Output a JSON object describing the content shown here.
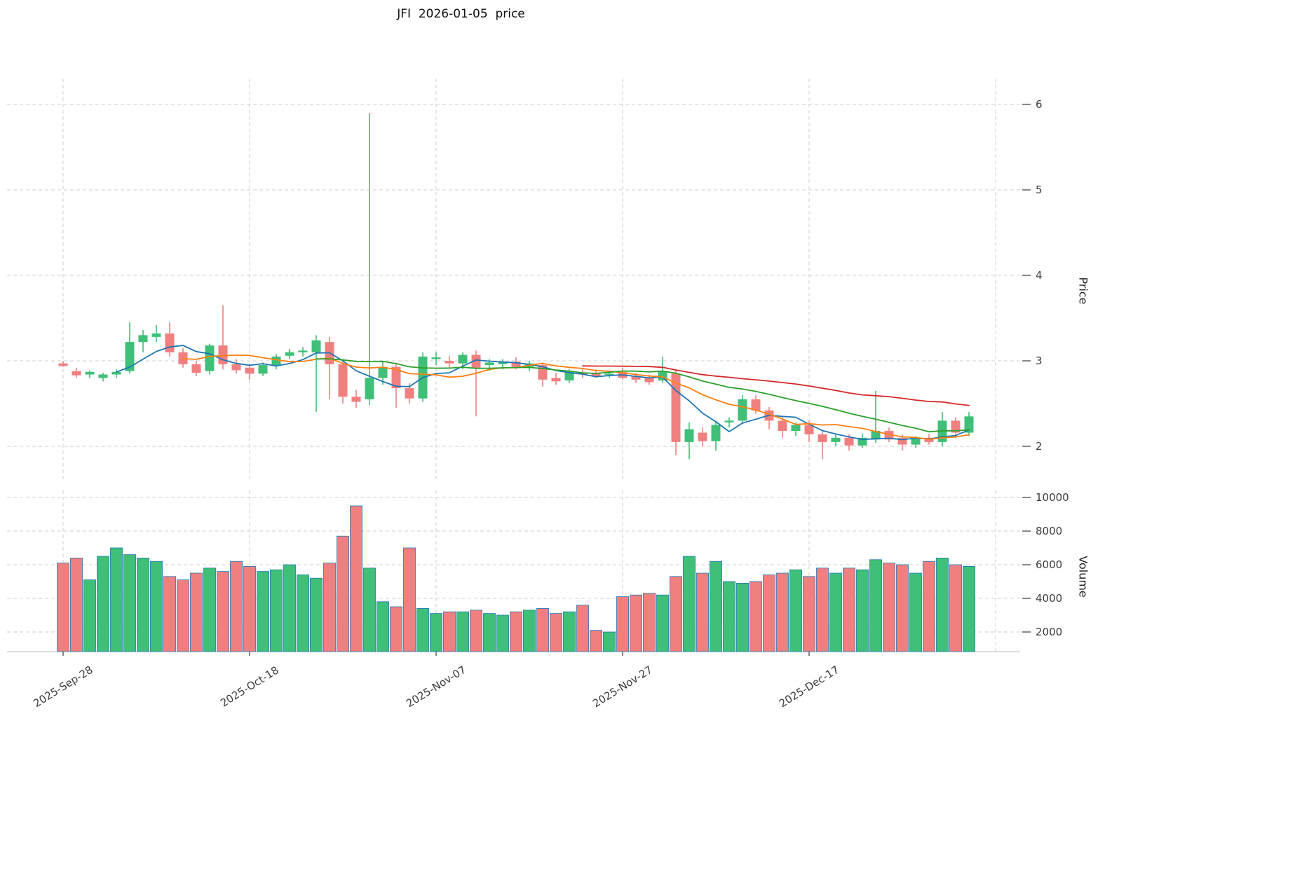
{
  "chart_data": {
    "type": "candlestick",
    "title": "JFI  2026-01-05  price",
    "symbol": "JFI",
    "as_of_date": "2026-01-05",
    "panels": [
      "price",
      "volume"
    ],
    "grid": true,
    "legend_position": "none",
    "price_axis": {
      "label": "Price",
      "ticks": [
        2,
        3,
        4,
        5,
        6
      ],
      "ylim": [
        1.57,
        6.3
      ],
      "side": "right"
    },
    "volume_axis": {
      "label": "Volume",
      "ticks": [
        2000,
        4000,
        6000,
        8000,
        10000
      ],
      "ylim": [
        800,
        10500
      ],
      "side": "right"
    },
    "x_axis": {
      "tick_indices": [
        0,
        14,
        28,
        42,
        56
      ],
      "tick_labels": [
        "2025-Sep-28",
        "2025-Oct-18",
        "2025-Nov-07",
        "2025-Nov-27",
        "2025-Dec-17"
      ],
      "extra_gridline_index": 70
    },
    "moving_averages": [
      {
        "name": "MA5",
        "window": 5,
        "color": "#1f77b4"
      },
      {
        "name": "MA10",
        "window": 10,
        "color": "#ff7f0e"
      },
      {
        "name": "MA20",
        "window": 20,
        "color": "#2ca02c"
      },
      {
        "name": "MA40",
        "window": 40,
        "color": "#d62728"
      }
    ],
    "colors": {
      "up": "#3fbf77",
      "down": "#f08080",
      "volume_edge": "#1f77b4",
      "grid": "#cfcfcf",
      "text": "#3c3c3c",
      "spine": "#bbbbbb"
    },
    "ohlc_columns": [
      "open",
      "high",
      "low",
      "close"
    ],
    "ohlc": [
      [
        2.97,
        3.0,
        2.93,
        2.94
      ],
      [
        2.88,
        2.92,
        2.8,
        2.83
      ],
      [
        2.84,
        2.89,
        2.8,
        2.87
      ],
      [
        2.8,
        2.86,
        2.76,
        2.84
      ],
      [
        2.84,
        2.9,
        2.8,
        2.87
      ],
      [
        2.88,
        3.45,
        2.85,
        3.22
      ],
      [
        3.22,
        3.36,
        3.1,
        3.3
      ],
      [
        3.28,
        3.42,
        3.22,
        3.32
      ],
      [
        3.32,
        3.45,
        3.05,
        3.1
      ],
      [
        3.1,
        3.15,
        2.92,
        2.96
      ],
      [
        2.96,
        3.0,
        2.82,
        2.86
      ],
      [
        2.88,
        3.2,
        2.84,
        3.18
      ],
      [
        3.18,
        3.65,
        2.9,
        2.96
      ],
      [
        2.96,
        3.02,
        2.85,
        2.89
      ],
      [
        2.92,
        2.96,
        2.78,
        2.85
      ],
      [
        2.85,
        2.98,
        2.82,
        2.95
      ],
      [
        2.95,
        3.08,
        2.9,
        3.05
      ],
      [
        3.06,
        3.14,
        3.02,
        3.1
      ],
      [
        3.1,
        3.16,
        3.05,
        3.12
      ],
      [
        3.1,
        3.3,
        2.4,
        3.24
      ],
      [
        3.22,
        3.28,
        2.55,
        2.96
      ],
      [
        2.96,
        3.02,
        2.5,
        2.58
      ],
      [
        2.58,
        2.66,
        2.45,
        2.52
      ],
      [
        2.55,
        5.9,
        2.48,
        2.8
      ],
      [
        2.8,
        3.0,
        2.72,
        2.93
      ],
      [
        2.93,
        2.98,
        2.45,
        2.68
      ],
      [
        2.68,
        2.74,
        2.5,
        2.56
      ],
      [
        2.56,
        3.1,
        2.52,
        3.05
      ],
      [
        3.02,
        3.1,
        2.95,
        3.04
      ],
      [
        3.0,
        3.06,
        2.92,
        2.97
      ],
      [
        2.97,
        3.1,
        2.9,
        3.07
      ],
      [
        3.07,
        3.12,
        2.35,
        2.92
      ],
      [
        2.95,
        3.02,
        2.88,
        2.98
      ],
      [
        2.96,
        3.02,
        2.9,
        2.99
      ],
      [
        2.99,
        3.04,
        2.9,
        2.93
      ],
      [
        2.93,
        3.0,
        2.88,
        2.97
      ],
      [
        2.95,
        2.98,
        2.7,
        2.78
      ],
      [
        2.8,
        2.86,
        2.72,
        2.76
      ],
      [
        2.77,
        2.9,
        2.74,
        2.87
      ],
      [
        2.86,
        2.92,
        2.8,
        2.84
      ],
      [
        2.86,
        2.9,
        2.8,
        2.82
      ],
      [
        2.84,
        2.88,
        2.8,
        2.85
      ],
      [
        2.87,
        2.92,
        2.78,
        2.8
      ],
      [
        2.82,
        2.86,
        2.74,
        2.78
      ],
      [
        2.8,
        2.84,
        2.72,
        2.75
      ],
      [
        2.77,
        3.05,
        2.74,
        2.88
      ],
      [
        2.85,
        2.9,
        1.9,
        2.05
      ],
      [
        2.05,
        2.28,
        1.85,
        2.2
      ],
      [
        2.16,
        2.22,
        2.0,
        2.06
      ],
      [
        2.06,
        2.3,
        1.95,
        2.25
      ],
      [
        2.28,
        2.34,
        2.22,
        2.3
      ],
      [
        2.3,
        2.6,
        2.26,
        2.55
      ],
      [
        2.55,
        2.6,
        2.38,
        2.42
      ],
      [
        2.42,
        2.46,
        2.2,
        2.3
      ],
      [
        2.3,
        2.34,
        2.1,
        2.18
      ],
      [
        2.18,
        2.28,
        2.12,
        2.25
      ],
      [
        2.25,
        2.3,
        2.05,
        2.14
      ],
      [
        2.14,
        2.18,
        1.85,
        2.05
      ],
      [
        2.05,
        2.14,
        2.0,
        2.1
      ],
      [
        2.1,
        2.14,
        1.95,
        2.01
      ],
      [
        2.01,
        2.15,
        1.98,
        2.1
      ],
      [
        2.08,
        2.65,
        2.04,
        2.18
      ],
      [
        2.18,
        2.22,
        2.05,
        2.08
      ],
      [
        2.1,
        2.14,
        1.95,
        2.02
      ],
      [
        2.02,
        2.12,
        1.98,
        2.1
      ],
      [
        2.1,
        2.14,
        2.02,
        2.05
      ],
      [
        2.05,
        2.4,
        2.0,
        2.3
      ],
      [
        2.3,
        2.34,
        2.1,
        2.16
      ],
      [
        2.16,
        2.4,
        2.12,
        2.35
      ]
    ],
    "volume": [
      6100,
      6400,
      5100,
      6500,
      7000,
      6600,
      6400,
      6200,
      5300,
      5100,
      5500,
      5800,
      5600,
      6200,
      5900,
      5600,
      5700,
      6000,
      5400,
      5200,
      6100,
      7700,
      9500,
      5800,
      3800,
      3500,
      7000,
      3400,
      3100,
      3200,
      3200,
      3300,
      3100,
      3000,
      3200,
      3300,
      3400,
      3100,
      3200,
      3600,
      2100,
      2000,
      4100,
      4200,
      4300,
      4200,
      5300,
      6500,
      5500,
      6200,
      5000,
      4900,
      5000,
      5400,
      5500,
      5700,
      5300,
      5800,
      5500,
      5800,
      5700,
      6300,
      6100,
      6000,
      5500,
      6200,
      6400,
      6000,
      5900
    ]
  }
}
